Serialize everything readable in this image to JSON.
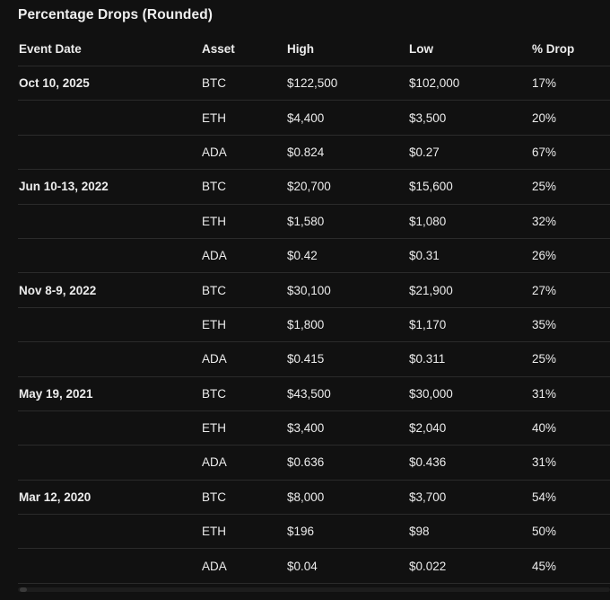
{
  "title": "Percentage Drops (Rounded)",
  "columns": {
    "event_date": "Event Date",
    "asset": "Asset",
    "high": "High",
    "low": "Low",
    "drop": "% Drop"
  },
  "rows": [
    {
      "date": "Oct 10, 2025",
      "asset": "BTC",
      "high": "$122,500",
      "low": "$102,000",
      "drop": "17%"
    },
    {
      "date": "",
      "asset": "ETH",
      "high": "$4,400",
      "low": "$3,500",
      "drop": "20%"
    },
    {
      "date": "",
      "asset": "ADA",
      "high": "$0.824",
      "low": "$0.27",
      "drop": "67%"
    },
    {
      "date": "Jun 10-13, 2022",
      "asset": "BTC",
      "high": "$20,700",
      "low": "$15,600",
      "drop": "25%"
    },
    {
      "date": "",
      "asset": "ETH",
      "high": "$1,580",
      "low": "$1,080",
      "drop": "32%"
    },
    {
      "date": "",
      "asset": "ADA",
      "high": "$0.42",
      "low": "$0.31",
      "drop": "26%"
    },
    {
      "date": "Nov 8-9, 2022",
      "asset": "BTC",
      "high": "$30,100",
      "low": "$21,900",
      "drop": "27%"
    },
    {
      "date": "",
      "asset": "ETH",
      "high": "$1,800",
      "low": "$1,170",
      "drop": "35%"
    },
    {
      "date": "",
      "asset": "ADA",
      "high": "$0.415",
      "low": "$0.311",
      "drop": "25%"
    },
    {
      "date": "May 19, 2021",
      "asset": "BTC",
      "high": "$43,500",
      "low": "$30,000",
      "drop": "31%"
    },
    {
      "date": "",
      "asset": "ETH",
      "high": "$3,400",
      "low": "$2,040",
      "drop": "40%"
    },
    {
      "date": "",
      "asset": "ADA",
      "high": "$0.636",
      "low": "$0.436",
      "drop": "31%"
    },
    {
      "date": "Mar 12, 2020",
      "asset": "BTC",
      "high": "$8,000",
      "low": "$3,700",
      "drop": "54%"
    },
    {
      "date": "",
      "asset": "ETH",
      "high": "$196",
      "low": "$98",
      "drop": "50%"
    },
    {
      "date": "",
      "asset": "ADA",
      "high": "$0.04",
      "low": "$0.022",
      "drop": "45%"
    }
  ]
}
